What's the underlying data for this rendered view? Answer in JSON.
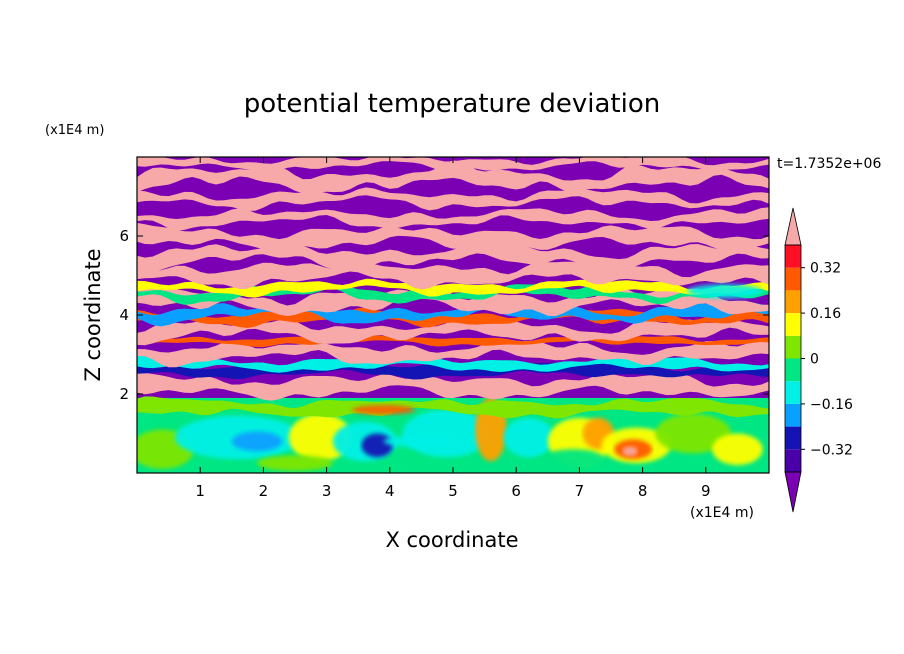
{
  "chart_data": {
    "type": "heatmap",
    "title": "potential temperature deviation",
    "xlabel": "X coordinate",
    "ylabel": "Z coordinate",
    "x_unit": "(x1E4 m)",
    "y_unit": "(x1E4 m)",
    "time_label": "t=1.7352e+06",
    "xlim": [
      0,
      10
    ],
    "ylim": [
      0,
      8
    ],
    "x_ticks": [
      1,
      2,
      3,
      4,
      5,
      6,
      7,
      8,
      9
    ],
    "y_ticks": [
      2,
      4,
      6
    ],
    "colorbar": {
      "levels": [
        -0.4,
        -0.32,
        -0.24,
        -0.16,
        -0.08,
        0,
        0.08,
        0.16,
        0.24,
        0.32,
        0.4
      ],
      "labels": [
        "0.32",
        "0.16",
        "0",
        "−0.16",
        "−0.32"
      ],
      "label_values": [
        0.32,
        0.16,
        0,
        -0.16,
        -0.32
      ],
      "colors": [
        "#7b00b4",
        "#4a00a8",
        "#1414b4",
        "#0aa0ff",
        "#00f0e6",
        "#00e682",
        "#7ee600",
        "#ffff00",
        "#ffa000",
        "#ff5a00",
        "#ff0f23",
        "#f7a8a8"
      ],
      "extend": "both"
    }
  }
}
